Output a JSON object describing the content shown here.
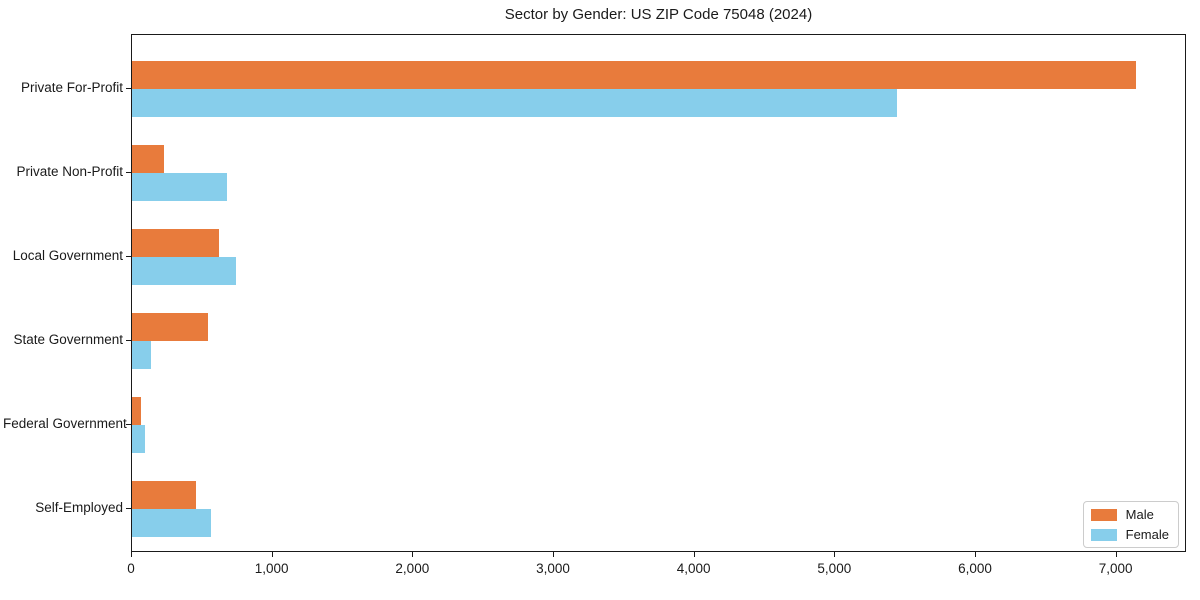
{
  "chart_data": {
    "type": "bar",
    "orientation": "horizontal",
    "title": "Sector by Gender: US ZIP Code 75048 (2024)",
    "categories": [
      "Private For-Profit",
      "Private Non-Profit",
      "Local Government",
      "State Government",
      "Federal Government",
      "Self-Employed"
    ],
    "series": [
      {
        "name": "Male",
        "color": "#e87b3c",
        "values": [
          7140,
          230,
          620,
          540,
          65,
          455
        ]
      },
      {
        "name": "Female",
        "color": "#87ceeb",
        "values": [
          5440,
          675,
          740,
          135,
          90,
          560
        ]
      }
    ],
    "xlabel": "",
    "ylabel": "",
    "xlim": [
      0,
      7500
    ],
    "x_ticks": [
      0,
      1000,
      2000,
      3000,
      4000,
      5000,
      6000,
      7000
    ],
    "x_tick_labels": [
      "0",
      "1,000",
      "2,000",
      "3,000",
      "4,000",
      "5,000",
      "6,000",
      "7,000"
    ],
    "grid": false,
    "legend": {
      "position": "lower right"
    }
  }
}
